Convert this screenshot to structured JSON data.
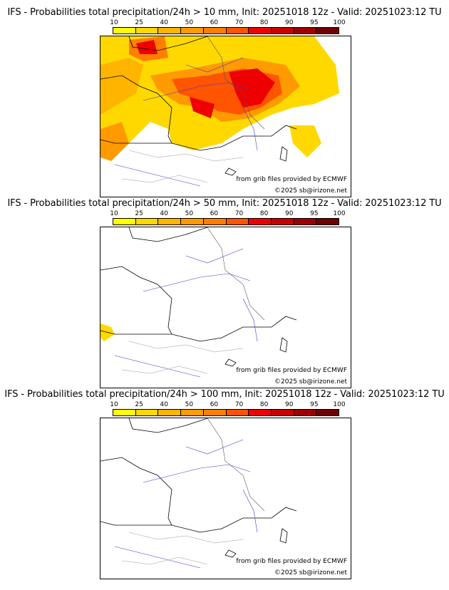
{
  "colorbar": {
    "ticks": [
      "10",
      "25",
      "40",
      "50",
      "60",
      "70",
      "80",
      "90",
      "95",
      "100"
    ],
    "colors": [
      "#ffff00",
      "#ffd800",
      "#ffb400",
      "#ff9a00",
      "#ff7e00",
      "#ff5400",
      "#ef0000",
      "#c80000",
      "#9e0000",
      "#6e0000"
    ]
  },
  "credit_text": "from grib files provided by ECMWF",
  "copyright_text": "©2025 sb@irizone.net",
  "panels": [
    {
      "title": "IFS - Probabilities total precipitation/24h > 10 mm, Init: 20251018 12z - Valid: 20251023:12 TU",
      "threshold_mm": 10
    },
    {
      "title": "IFS - Probabilities total precipitation/24h > 50 mm, Init: 20251018 12z - Valid: 20251023:12 TU",
      "threshold_mm": 50
    },
    {
      "title": "IFS - Probabilities total precipitation/24h > 100 mm, Init: 20251018 12z - Valid: 20251023:12 TU",
      "threshold_mm": 100
    }
  ]
}
